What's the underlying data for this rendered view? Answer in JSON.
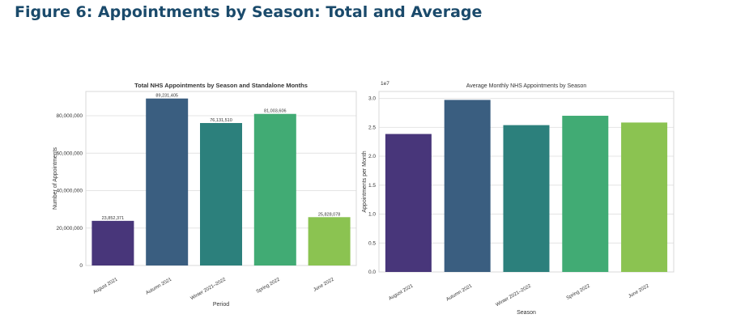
{
  "page": {
    "figure_title": "Figure 6: Appointments by Season: Total and Average"
  },
  "chart_data": [
    {
      "type": "bar",
      "title": "Total NHS Appointments by Season and Standalone Months",
      "xlabel": "Period",
      "ylabel": "Number of Appointments",
      "categories": [
        "August 2021",
        "Autumn 2021",
        "Winter 2021–2022",
        "Spring 2022",
        "June 2022"
      ],
      "values": [
        23852371,
        89231405,
        76131510,
        81003606,
        25828078
      ],
      "data_labels": [
        "23,852,371",
        "89,231,405",
        "76,131,510",
        "81,003,606",
        "25,828,078"
      ],
      "ylim": [
        0,
        93000000
      ],
      "yticks": [
        0,
        20000000,
        40000000,
        60000000,
        80000000
      ],
      "ytick_labels": [
        "0",
        "20,000,000",
        "40,000,000",
        "60,000,000",
        "80,000,000"
      ],
      "colors": [
        "#48367a",
        "#3a5e80",
        "#2c807c",
        "#41ab74",
        "#8bc351"
      ],
      "grid": true
    },
    {
      "type": "bar",
      "title": "Average Monthly NHS Appointments by Season",
      "xlabel": "Season",
      "ylabel": "Appointments per Month",
      "offset_label": "1e7",
      "categories": [
        "August 2021",
        "Autumn 2021",
        "Winter 2021–2022",
        "Spring 2022",
        "June 2022"
      ],
      "values": [
        2.385,
        2.974,
        2.538,
        2.7,
        2.583
      ],
      "ylim": [
        0,
        3.12
      ],
      "yticks": [
        0,
        0.5,
        1.0,
        1.5,
        2.0,
        2.5,
        3.0
      ],
      "ytick_labels": [
        "0.0",
        "0.5",
        "1.0",
        "1.5",
        "2.0",
        "2.5",
        "3.0"
      ],
      "colors": [
        "#48367a",
        "#3a5e80",
        "#2c807c",
        "#41ab74",
        "#8bc351"
      ],
      "grid": true
    }
  ]
}
